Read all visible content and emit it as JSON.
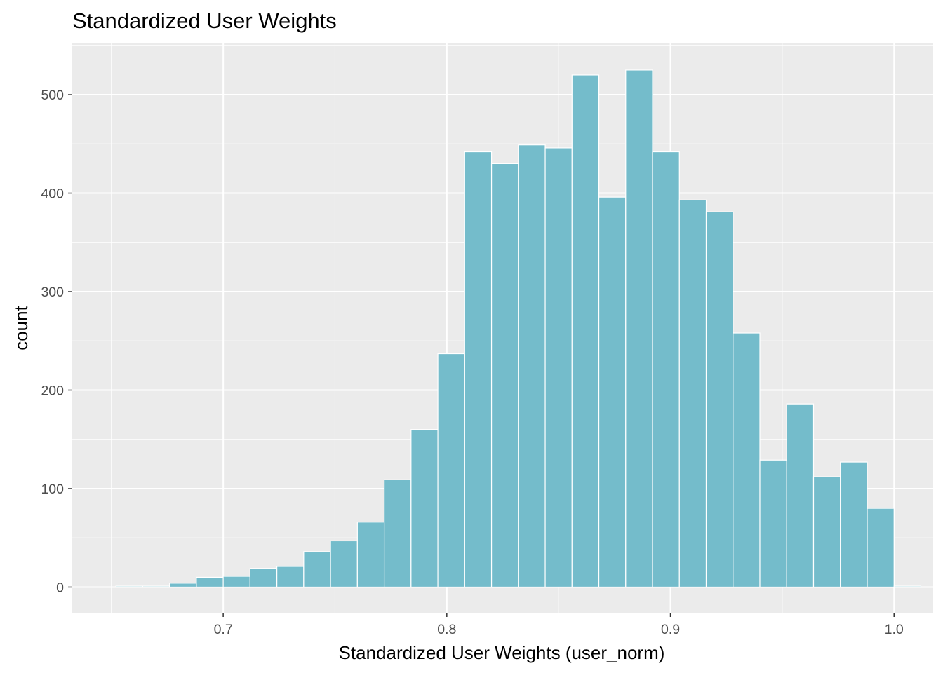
{
  "chart_data": {
    "type": "bar",
    "title": "Standardized User Weights",
    "xlabel": "Standardized User Weights (user_norm)",
    "ylabel": "count",
    "xlim": [
      0.6325,
      1.0175
    ],
    "ylim": [
      -26,
      552
    ],
    "x_ticks": [
      0.7,
      0.8,
      0.9,
      1.0
    ],
    "x_tick_labels": [
      "0.7",
      "0.8",
      "0.9",
      "1.0"
    ],
    "y_ticks": [
      0,
      100,
      200,
      300,
      400,
      500
    ],
    "y_tick_labels": [
      "0",
      "100",
      "200",
      "300",
      "400",
      "500"
    ],
    "bin_width": 0.012,
    "bin_centers": [
      0.658,
      0.67,
      0.682,
      0.694,
      0.706,
      0.718,
      0.73,
      0.742,
      0.754,
      0.766,
      0.778,
      0.79,
      0.802,
      0.814,
      0.826,
      0.838,
      0.85,
      0.862,
      0.874,
      0.886,
      0.898,
      0.91,
      0.922,
      0.934,
      0.946,
      0.958,
      0.97,
      0.982,
      0.994,
      1.006
    ],
    "values": [
      1,
      1,
      4,
      10,
      11,
      19,
      21,
      36,
      47,
      66,
      109,
      160,
      237,
      442,
      430,
      449,
      446,
      520,
      396,
      525,
      442,
      393,
      381,
      258,
      129,
      186,
      112,
      127,
      80,
      1
    ],
    "colors": {
      "bar_fill": "#74bccb",
      "bar_outline": "#ffffff",
      "panel_background": "#ebebeb",
      "grid": "#ffffff"
    },
    "grid": true,
    "legend": "none"
  }
}
